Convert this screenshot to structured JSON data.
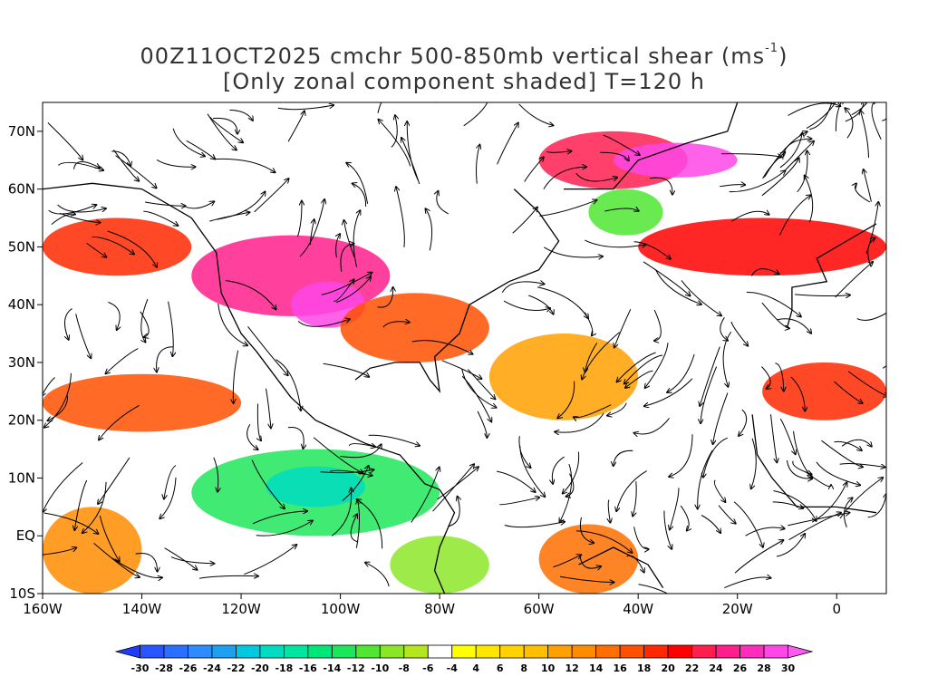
{
  "title": {
    "line1_prefix": "00Z11OCT2025 cmchr 500-850mb vertical shear (ms",
    "line1_sup": "-1",
    "line1_suffix": ")",
    "line2": "[Only zonal component shaded] T=120 h"
  },
  "map": {
    "lon_range": [
      -160,
      10
    ],
    "lat_range": [
      -10,
      75
    ],
    "lat_ticks": [
      {
        "value": 70,
        "label": "70N"
      },
      {
        "value": 60,
        "label": "60N"
      },
      {
        "value": 50,
        "label": "50N"
      },
      {
        "value": 40,
        "label": "40N"
      },
      {
        "value": 30,
        "label": "30N"
      },
      {
        "value": 20,
        "label": "20N"
      },
      {
        "value": 10,
        "label": "10N"
      },
      {
        "value": 0,
        "label": "EQ"
      },
      {
        "value": -10,
        "label": "10S"
      }
    ],
    "lon_ticks": [
      {
        "value": -160,
        "label": "160W"
      },
      {
        "value": -140,
        "label": "140W"
      },
      {
        "value": -120,
        "label": "120W"
      },
      {
        "value": -100,
        "label": "100W"
      },
      {
        "value": -80,
        "label": "80W"
      },
      {
        "value": -60,
        "label": "60W"
      },
      {
        "value": -40,
        "label": "40W"
      },
      {
        "value": -20,
        "label": "20W"
      },
      {
        "value": 0,
        "label": "0"
      }
    ],
    "shear_bands": [
      {
        "lon": [
          -160,
          -130
        ],
        "lat": [
          45,
          55
        ],
        "value": 18
      },
      {
        "lon": [
          -130,
          -90
        ],
        "lat": [
          38,
          52
        ],
        "value": 24
      },
      {
        "lon": [
          -110,
          -95
        ],
        "lat": [
          36,
          44
        ],
        "value": 28
      },
      {
        "lon": [
          -100,
          -70
        ],
        "lat": [
          30,
          42
        ],
        "value": 16
      },
      {
        "lon": [
          -60,
          -30
        ],
        "lat": [
          60,
          70
        ],
        "value": 22
      },
      {
        "lon": [
          -45,
          -20
        ],
        "lat": [
          62,
          68
        ],
        "value": 28
      },
      {
        "lon": [
          -40,
          10
        ],
        "lat": [
          45,
          55
        ],
        "value": 20
      },
      {
        "lon": [
          -160,
          -120
        ],
        "lat": [
          18,
          28
        ],
        "value": 16
      },
      {
        "lon": [
          -15,
          10
        ],
        "lat": [
          20,
          30
        ],
        "value": 18
      },
      {
        "lon": [
          -130,
          -80
        ],
        "lat": [
          0,
          15
        ],
        "value": -14
      },
      {
        "lon": [
          -115,
          -95
        ],
        "lat": [
          5,
          12
        ],
        "value": -20
      },
      {
        "lon": [
          -160,
          -140
        ],
        "lat": [
          -10,
          5
        ],
        "value": 12
      },
      {
        "lon": [
          -60,
          -40
        ],
        "lat": [
          -10,
          2
        ],
        "value": 14
      },
      {
        "lon": [
          -90,
          -70
        ],
        "lat": [
          -10,
          0
        ],
        "value": -10
      },
      {
        "lon": [
          -70,
          -40
        ],
        "lat": [
          20,
          35
        ],
        "value": 10
      },
      {
        "lon": [
          -50,
          -35
        ],
        "lat": [
          52,
          60
        ],
        "value": -12
      }
    ]
  },
  "colorbar": {
    "levels": [
      "-30",
      "-28",
      "-26",
      "-24",
      "-22",
      "-20",
      "-18",
      "-16",
      "-14",
      "-12",
      "-10",
      "-8",
      "-6",
      "-4",
      "4",
      "6",
      "8",
      "10",
      "12",
      "14",
      "16",
      "18",
      "20",
      "22",
      "24",
      "26",
      "28",
      "30"
    ],
    "colors": [
      "#1e3cff",
      "#2855ff",
      "#2a70ff",
      "#2d8cff",
      "#1ea0f0",
      "#00c8e0",
      "#00dcc0",
      "#00e6a0",
      "#00e678",
      "#1ee65a",
      "#50e632",
      "#8ce628",
      "#b4e61e",
      "#ffffff",
      "#ffff00",
      "#ffe600",
      "#ffd200",
      "#ffbe00",
      "#ffa000",
      "#ff8c00",
      "#ff6e00",
      "#ff5000",
      "#ff2800",
      "#ff0000",
      "#ff1e50",
      "#ff1e8c",
      "#ff2dbe",
      "#ff46e6",
      "#ff5af0"
    ]
  }
}
